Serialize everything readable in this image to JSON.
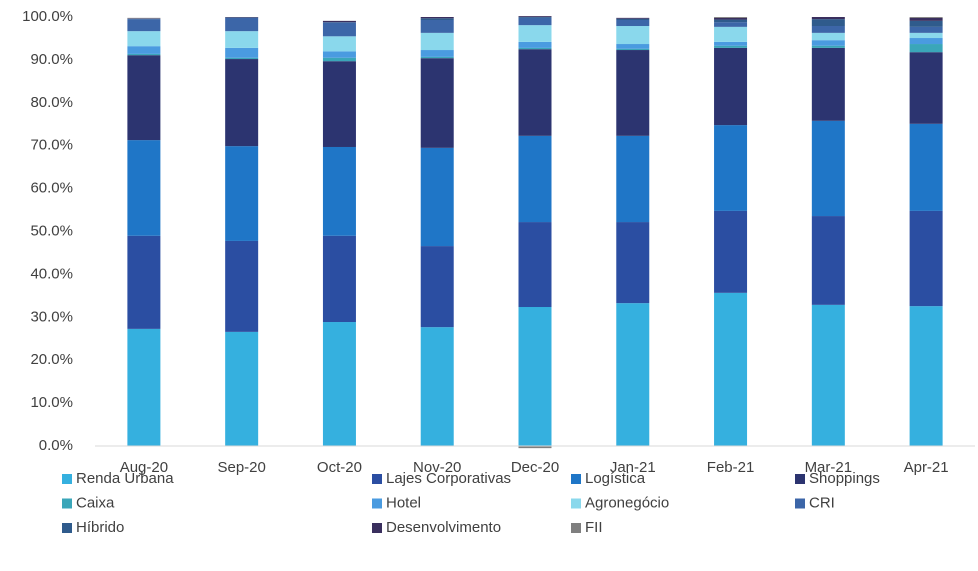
{
  "chart_data": {
    "type": "stacked_bar",
    "categories": [
      "Aug-20",
      "Sep-20",
      "Oct-20",
      "Nov-20",
      "Dec-20",
      "Jan-21",
      "Feb-21",
      "Mar-21",
      "Apr-21"
    ],
    "series": [
      {
        "name": "Renda Urbana",
        "color": "#35b0df",
        "values": [
          27.3,
          26.6,
          28.9,
          27.7,
          32.4,
          33.3,
          35.7,
          32.9,
          32.6
        ]
      },
      {
        "name": "Lajes Corporativas",
        "color": "#2b4ea2",
        "values": [
          21.7,
          21.2,
          20.1,
          18.9,
          19.8,
          18.9,
          19.1,
          20.7,
          22.2
        ]
      },
      {
        "name": "Logística",
        "color": "#1f76c7",
        "values": [
          22.3,
          22.1,
          20.7,
          22.9,
          20.1,
          20.1,
          20.0,
          22.2,
          20.3
        ]
      },
      {
        "name": "Shoppings",
        "color": "#2c3470",
        "values": [
          19.8,
          20.3,
          20.0,
          20.9,
          20.2,
          20.0,
          18.0,
          17.0,
          16.7
        ]
      },
      {
        "name": "Caixa",
        "color": "#3aa6b9",
        "values": [
          0.3,
          0.3,
          0.8,
          0.3,
          0.3,
          0.3,
          0.5,
          0.5,
          1.9
        ]
      },
      {
        "name": "Hotel",
        "color": "#4a9be0",
        "values": [
          1.8,
          2.3,
          1.5,
          1.6,
          1.4,
          1.1,
          0.9,
          1.3,
          1.4
        ]
      },
      {
        "name": "Agronegócio",
        "color": "#8ad8ec",
        "values": [
          3.5,
          3.9,
          3.5,
          4.0,
          3.9,
          4.2,
          3.5,
          1.7,
          1.2
        ]
      },
      {
        "name": "CRI",
        "color": "#3c66a8",
        "values": [
          2.8,
          3.1,
          3.2,
          3.0,
          1.7,
          1.4,
          1.1,
          1.6,
          1.4
        ]
      },
      {
        "name": "Híbrido",
        "color": "#2f5b8c",
        "values": [
          0.1,
          0.1,
          0.1,
          0.4,
          0.2,
          0.3,
          0.6,
          1.6,
          1.4
        ]
      },
      {
        "name": "Desenvolvimento",
        "color": "#3a2f5e",
        "values": [
          0.1,
          0.1,
          0.3,
          0.3,
          0.2,
          0.2,
          0.4,
          0.5,
          0.7
        ]
      },
      {
        "name": "FII",
        "color": "#7f7f7f",
        "values": [
          0.1,
          0.0,
          0.0,
          0.0,
          -0.5,
          0.0,
          0.2,
          0.0,
          0.2
        ]
      }
    ],
    "ylim": [
      0,
      100
    ],
    "yticks": [
      {
        "value": 0,
        "label": "0.0%"
      },
      {
        "value": 10,
        "label": "10.0%"
      },
      {
        "value": 20,
        "label": "20.0%"
      },
      {
        "value": 30,
        "label": "30.0%"
      },
      {
        "value": 40,
        "label": "40.0%"
      },
      {
        "value": 50,
        "label": "50.0%"
      },
      {
        "value": 60,
        "label": "60.0%"
      },
      {
        "value": 70,
        "label": "70.0%"
      },
      {
        "value": 80,
        "label": "80.0%"
      },
      {
        "value": 90,
        "label": "90.0%"
      },
      {
        "value": 100,
        "label": "100.0%"
      }
    ],
    "legend": "bottom"
  }
}
